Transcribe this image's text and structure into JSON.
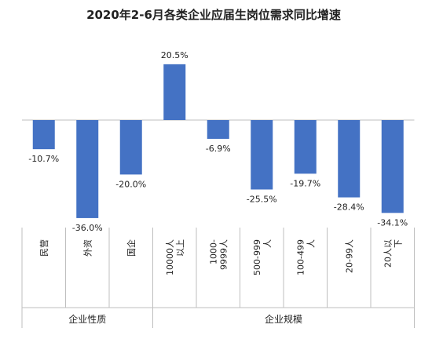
{
  "chart_data": {
    "type": "bar",
    "title": "2020年2-6月各类企业应届生岗位需求同比增速",
    "categories": [
      "民营",
      "外资",
      "国企",
      "10000人以上",
      "1000-9999人",
      "500-999人",
      "100-499人",
      "20-99人",
      "20人以下"
    ],
    "category_lines": [
      [
        "民营"
      ],
      [
        "外资"
      ],
      [
        "国企"
      ],
      [
        "10000人",
        "以上"
      ],
      [
        "1000-",
        "9999人"
      ],
      [
        "500-999",
        "人"
      ],
      [
        "100-499",
        "人"
      ],
      [
        "20-99人"
      ],
      [
        "20人以",
        "下"
      ]
    ],
    "values": [
      -10.7,
      -36.0,
      -20.0,
      20.5,
      -6.9,
      -25.5,
      -19.7,
      -28.4,
      -34.1
    ],
    "data_labels": [
      "-10.7%",
      "-36.0%",
      "-20.0%",
      "20.5%",
      "-6.9%",
      "-25.5%",
      "-19.7%",
      "-28.4%",
      "-34.1%"
    ],
    "groups": [
      {
        "name": "企业性质",
        "count": 3
      },
      {
        "name": "企业规模",
        "count": 6
      }
    ],
    "bar_color": "#4472C4",
    "xlabel": "",
    "ylabel": "",
    "legend": "none",
    "grid": false
  }
}
